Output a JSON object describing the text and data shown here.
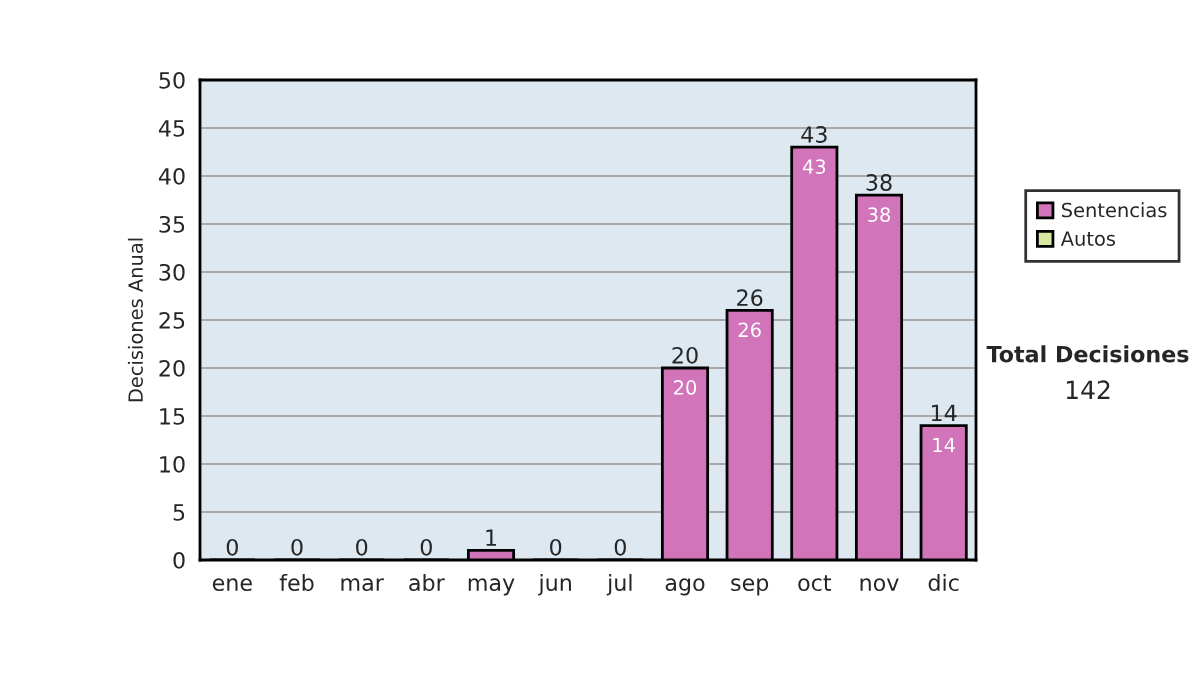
{
  "chart_data": {
    "type": "bar",
    "ylabel": "Decisiones Anual",
    "categories": [
      "ene",
      "feb",
      "mar",
      "abr",
      "may",
      "jun",
      "jul",
      "ago",
      "sep",
      "oct",
      "nov",
      "dic"
    ],
    "series": [
      {
        "name": "Sentencias",
        "color": "#d274b9",
        "values": [
          0,
          0,
          0,
          0,
          1,
          0,
          0,
          20,
          26,
          43,
          38,
          14
        ],
        "value_labels": [
          null,
          null,
          null,
          null,
          null,
          null,
          null,
          "20",
          "26",
          "43",
          "38",
          "14"
        ]
      },
      {
        "name": "Autos",
        "color": "#d8e8a0",
        "values": [
          null,
          null,
          null,
          null,
          null,
          null,
          null,
          null,
          null,
          null,
          null,
          null
        ]
      }
    ],
    "stacked": true,
    "totals": [
      "0",
      "0",
      "0",
      "0",
      "1",
      "0",
      "0",
      "20",
      "26",
      "43",
      "38",
      "14"
    ],
    "ylim": [
      0,
      50
    ],
    "yticks": [
      0,
      5,
      10,
      15,
      20,
      25,
      30,
      35,
      40,
      45,
      50
    ],
    "grid": "y",
    "legend": "right",
    "annotations": [
      "Total Decisiones",
      "142"
    ]
  }
}
